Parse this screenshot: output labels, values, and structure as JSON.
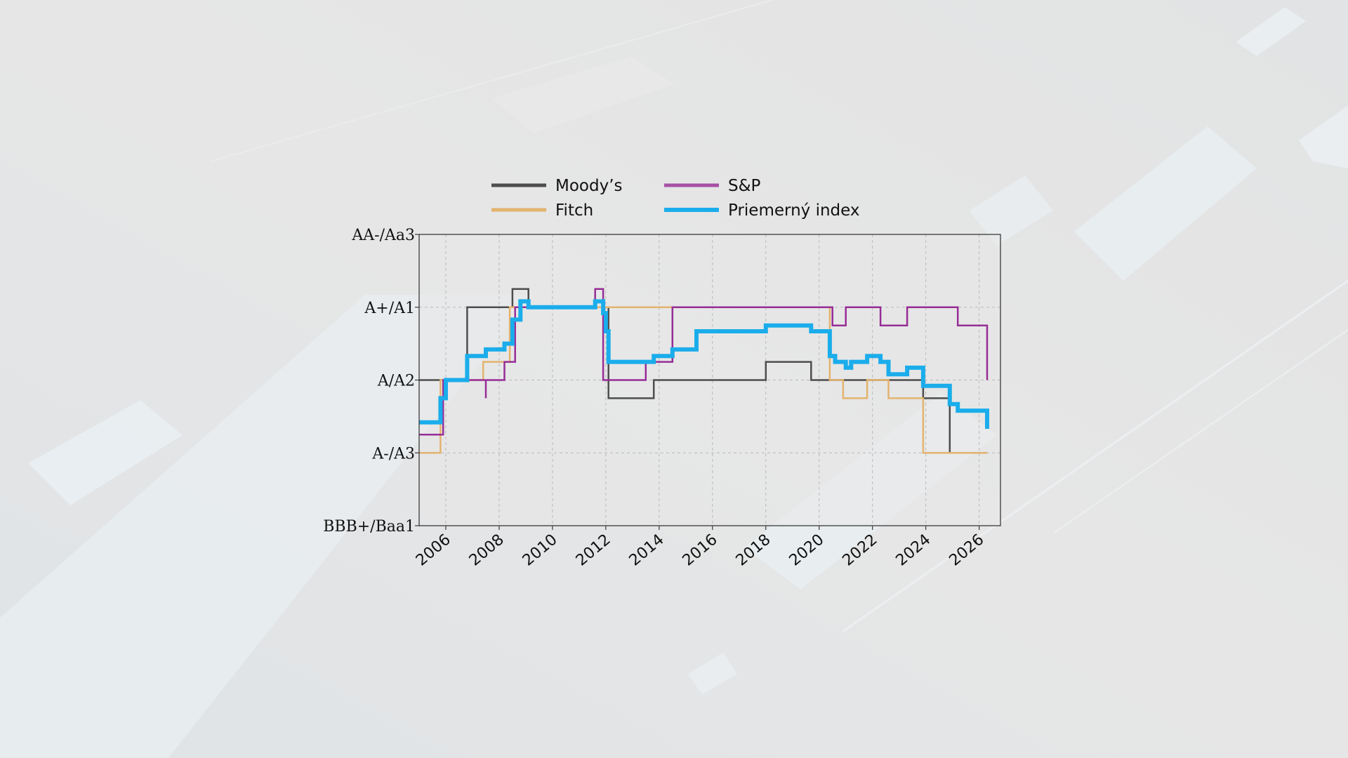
{
  "chart_data": {
    "type": "line",
    "step": true,
    "title": "",
    "xlabel": "",
    "ylabel": "",
    "xlim": [
      2005.0,
      2026.8
    ],
    "xticks": [
      2006,
      2008,
      2010,
      2012,
      2014,
      2016,
      2018,
      2020,
      2022,
      2024,
      2026
    ],
    "ylim": [
      0,
      4
    ],
    "yticks": [
      {
        "value": 0,
        "label": "BBB+/Baa1"
      },
      {
        "value": 1,
        "label": "A-/A3"
      },
      {
        "value": 2,
        "label": "A/A2"
      },
      {
        "value": 3,
        "label": "A+/A1"
      },
      {
        "value": 4,
        "label": "AA-/Aa3"
      }
    ],
    "grid": true,
    "legend_position": "top-center",
    "series": [
      {
        "name": "Moody’s",
        "color": "#4d4d4d",
        "points": [
          [
            2005.0,
            2
          ],
          [
            2005.8,
            2
          ],
          [
            2006.8,
            3
          ],
          [
            2008.5,
            3.25
          ],
          [
            2009.1,
            3
          ],
          [
            2011.9,
            3
          ],
          [
            2012.1,
            1.75
          ],
          [
            2013.8,
            1.75
          ],
          [
            2013.8,
            2
          ],
          [
            2018.0,
            2
          ],
          [
            2018.0,
            2.25
          ],
          [
            2019.7,
            2.25
          ],
          [
            2019.7,
            2
          ],
          [
            2021.8,
            2
          ],
          [
            2021.8,
            2
          ],
          [
            2023.9,
            1.75
          ],
          [
            2024.9,
            1.75
          ],
          [
            2024.9,
            1
          ],
          [
            2026.3,
            1
          ]
        ]
      },
      {
        "name": "Fitch",
        "color": "#e3b36e",
        "points": [
          [
            2005.0,
            1
          ],
          [
            2005.8,
            1
          ],
          [
            2005.8,
            2
          ],
          [
            2007.4,
            2
          ],
          [
            2007.4,
            2.25
          ],
          [
            2008.4,
            2.25
          ],
          [
            2008.4,
            3
          ],
          [
            2020.4,
            3
          ],
          [
            2020.4,
            2
          ],
          [
            2020.9,
            2
          ],
          [
            2020.9,
            1.75
          ],
          [
            2021.8,
            1.75
          ],
          [
            2021.8,
            2
          ],
          [
            2022.6,
            2
          ],
          [
            2022.6,
            1.75
          ],
          [
            2023.9,
            1.75
          ],
          [
            2023.9,
            1
          ],
          [
            2026.3,
            1
          ]
        ]
      },
      {
        "name": "S&P",
        "color": "#972d96",
        "points": [
          [
            2005.0,
            1.25
          ],
          [
            2005.9,
            1.25
          ],
          [
            2005.9,
            2
          ],
          [
            2007.5,
            2
          ],
          [
            2007.5,
            1.75
          ],
          [
            2007.5,
            2
          ],
          [
            2008.2,
            2
          ],
          [
            2008.2,
            2.25
          ],
          [
            2008.6,
            2.25
          ],
          [
            2008.6,
            3
          ],
          [
            2011.6,
            3
          ],
          [
            2011.6,
            3.25
          ],
          [
            2011.9,
            3.25
          ],
          [
            2011.9,
            2
          ],
          [
            2013.5,
            2
          ],
          [
            2013.5,
            2.25
          ],
          [
            2014.5,
            2.25
          ],
          [
            2014.5,
            3
          ],
          [
            2020.5,
            3
          ],
          [
            2020.5,
            2.75
          ],
          [
            2021.0,
            2.75
          ],
          [
            2021.0,
            3
          ],
          [
            2022.3,
            3
          ],
          [
            2022.3,
            2.75
          ],
          [
            2023.3,
            2.75
          ],
          [
            2023.3,
            3
          ],
          [
            2025.2,
            3
          ],
          [
            2025.2,
            2.75
          ],
          [
            2026.3,
            2.75
          ],
          [
            2026.3,
            2
          ]
        ]
      },
      {
        "name": "Priemerný index",
        "color": "#1badeb",
        "points": [
          [
            2005.0,
            1.42
          ],
          [
            2005.8,
            1.42
          ],
          [
            2005.8,
            1.75
          ],
          [
            2006.0,
            1.75
          ],
          [
            2006.0,
            2
          ],
          [
            2006.8,
            2
          ],
          [
            2006.8,
            2.33
          ],
          [
            2007.5,
            2.33
          ],
          [
            2007.5,
            2.42
          ],
          [
            2008.2,
            2.42
          ],
          [
            2008.2,
            2.5
          ],
          [
            2008.5,
            2.5
          ],
          [
            2008.5,
            2.83
          ],
          [
            2008.8,
            2.83
          ],
          [
            2008.8,
            3.08
          ],
          [
            2009.1,
            3.08
          ],
          [
            2009.1,
            3
          ],
          [
            2011.6,
            3
          ],
          [
            2011.6,
            3.08
          ],
          [
            2011.9,
            3.08
          ],
          [
            2011.9,
            2.92
          ],
          [
            2012.0,
            2.92
          ],
          [
            2012.0,
            2.67
          ],
          [
            2012.1,
            2.67
          ],
          [
            2012.1,
            2.25
          ],
          [
            2013.8,
            2.25
          ],
          [
            2013.8,
            2.33
          ],
          [
            2014.5,
            2.33
          ],
          [
            2014.5,
            2.42
          ],
          [
            2015.4,
            2.42
          ],
          [
            2015.4,
            2.67
          ],
          [
            2018.0,
            2.67
          ],
          [
            2018.0,
            2.75
          ],
          [
            2019.7,
            2.75
          ],
          [
            2019.7,
            2.67
          ],
          [
            2020.4,
            2.67
          ],
          [
            2020.4,
            2.33
          ],
          [
            2020.6,
            2.33
          ],
          [
            2020.6,
            2.25
          ],
          [
            2021.0,
            2.25
          ],
          [
            2021.0,
            2.17
          ],
          [
            2021.2,
            2.17
          ],
          [
            2021.2,
            2.25
          ],
          [
            2021.8,
            2.25
          ],
          [
            2021.8,
            2.33
          ],
          [
            2022.3,
            2.33
          ],
          [
            2022.3,
            2.25
          ],
          [
            2022.6,
            2.25
          ],
          [
            2022.6,
            2.08
          ],
          [
            2023.3,
            2.08
          ],
          [
            2023.3,
            2.17
          ],
          [
            2023.9,
            2.17
          ],
          [
            2023.9,
            1.92
          ],
          [
            2024.9,
            1.92
          ],
          [
            2024.9,
            1.67
          ],
          [
            2025.2,
            1.67
          ],
          [
            2025.2,
            1.58
          ],
          [
            2026.3,
            1.58
          ],
          [
            2026.3,
            1.33
          ]
        ]
      }
    ]
  }
}
